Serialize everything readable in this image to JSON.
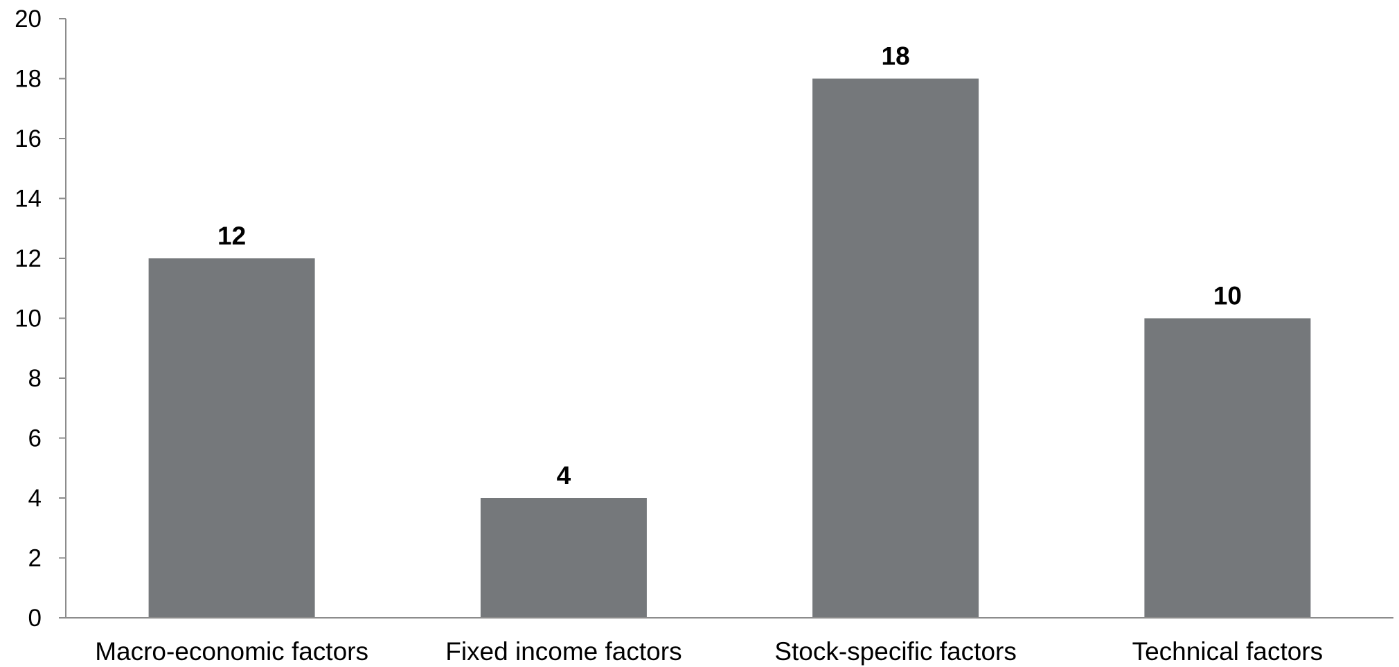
{
  "chart_data": {
    "type": "bar",
    "title": "",
    "xlabel": "",
    "ylabel": "",
    "categories": [
      "Macro-economic factors",
      "Fixed income factors",
      "Stock-specific factors",
      "Technical factors"
    ],
    "values": [
      12,
      4,
      18,
      10
    ],
    "data_labels": [
      "12",
      "4",
      "18",
      "10"
    ],
    "ylim": [
      0,
      20
    ],
    "yticks": [
      0,
      2,
      4,
      6,
      8,
      10,
      12,
      14,
      16,
      18,
      20
    ],
    "ytick_labels": [
      "0",
      "2",
      "4",
      "6",
      "8",
      "10",
      "12",
      "14",
      "16",
      "18",
      "20"
    ],
    "grid": false,
    "legend": "none",
    "colors": {
      "bar": "#75787b",
      "axis": "#8c8c8c",
      "text": "#000000"
    }
  }
}
